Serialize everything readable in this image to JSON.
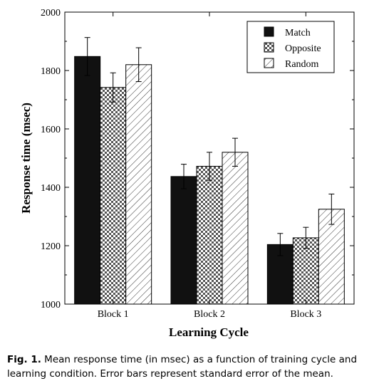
{
  "chart_data": {
    "type": "bar",
    "categories": [
      "Block 1",
      "Block 2",
      "Block 3"
    ],
    "series": [
      {
        "name": "Match",
        "values": [
          1848,
          1437,
          1204
        ],
        "errors": [
          65,
          42,
          38
        ],
        "fill": "solid-black"
      },
      {
        "name": "Opposite",
        "values": [
          1742,
          1472,
          1227
        ],
        "errors": [
          50,
          48,
          36
        ],
        "fill": "checkered"
      },
      {
        "name": "Random",
        "values": [
          1820,
          1520,
          1325
        ],
        "errors": [
          58,
          48,
          52
        ],
        "fill": "diagonal-hatch"
      }
    ],
    "xlabel": "Learning Cycle",
    "ylabel": "Response time (msec)",
    "ylim": [
      1000,
      2000
    ],
    "yticks": [
      "1000",
      "1200",
      "1400",
      "1600",
      "1800",
      "2000"
    ],
    "legend_position": "top-right",
    "grid": false,
    "error_bars": "standard error"
  },
  "caption": {
    "label": "Fig. 1.",
    "text": "Mean response time (in msec) as a function of training cycle and learning condition. Error bars represent standard error of the mean."
  },
  "colors": {
    "bar_dark": "#111111",
    "axis": "#000000",
    "background": "#ffffff"
  }
}
